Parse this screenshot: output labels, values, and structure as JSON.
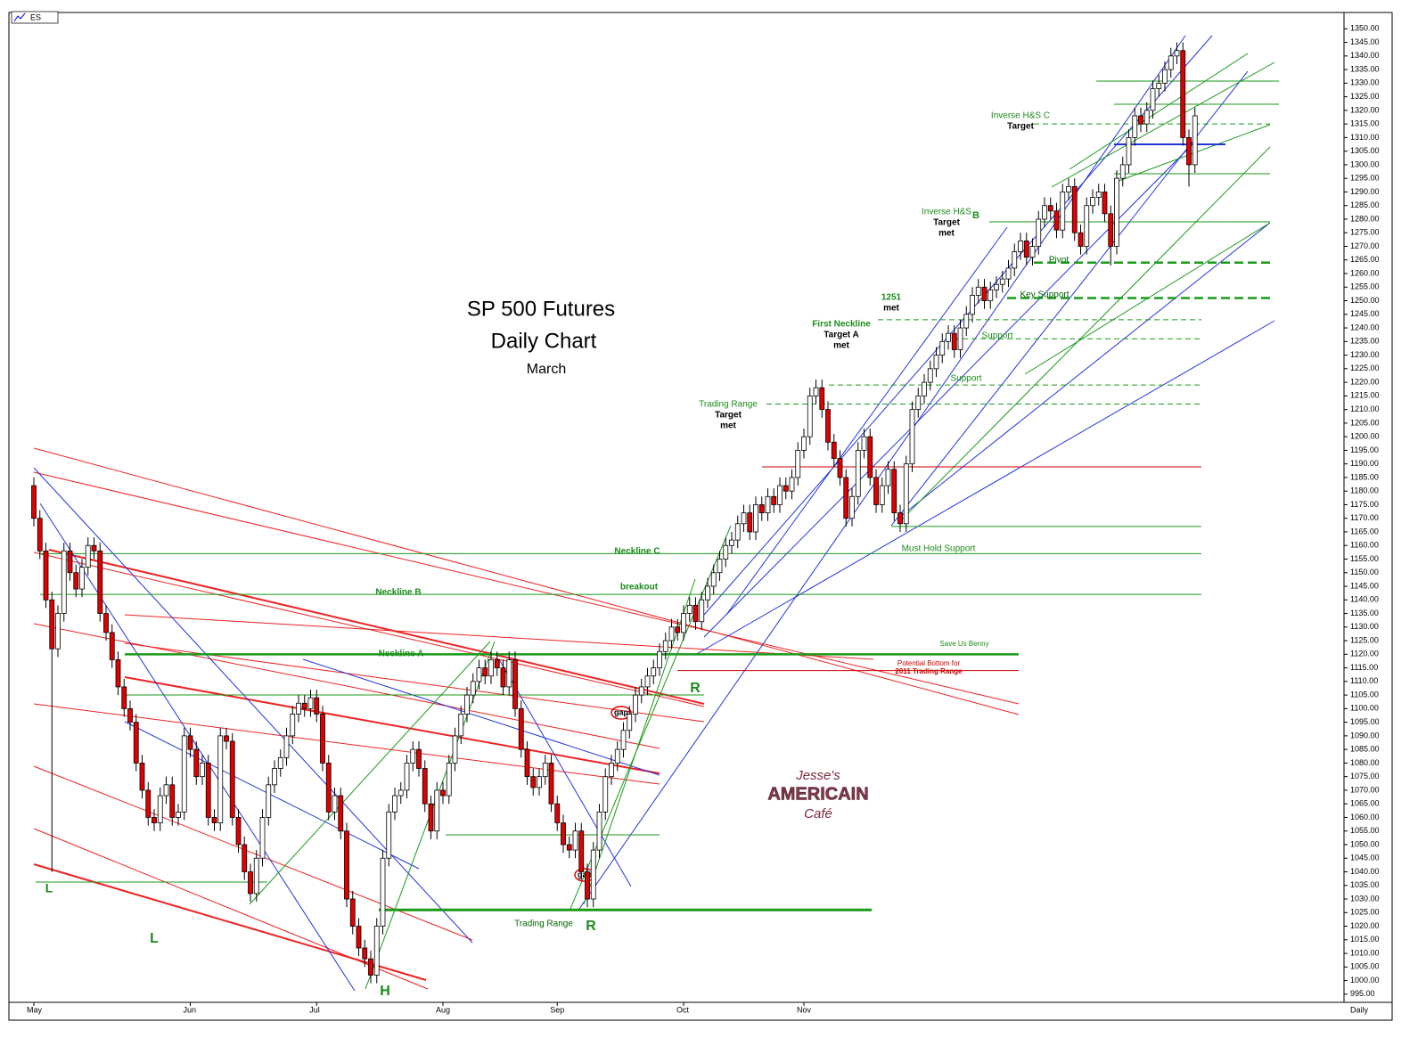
{
  "chart_data": {
    "type": "candlestick",
    "ticker": "ES",
    "title": "SP 500 Futures",
    "subtitle": "Daily Chart",
    "note": "March",
    "period_label": "Daily",
    "watermark": [
      "Jesse's",
      "AMERICAIN",
      "Café"
    ],
    "up_color": "#ffffff",
    "down_color": "#e00000",
    "categories": [
      "May",
      null,
      null,
      null,
      null,
      null,
      null,
      null,
      null,
      null,
      null,
      null,
      null,
      null,
      null,
      null,
      null,
      null,
      null,
      null,
      null,
      null,
      null,
      null,
      null,
      null,
      "Jun",
      null,
      null,
      null,
      null,
      null,
      null,
      null,
      null,
      null,
      null,
      null,
      null,
      null,
      null,
      null,
      null,
      null,
      null,
      null,
      null,
      "Jul",
      null,
      null,
      null,
      null,
      null,
      null,
      null,
      null,
      null,
      null,
      null,
      null,
      null,
      null,
      null,
      null,
      null,
      null,
      null,
      null,
      "Aug",
      null,
      null,
      null,
      null,
      null,
      null,
      null,
      null,
      null,
      null,
      null,
      null,
      null,
      null,
      null,
      null,
      null,
      null,
      "Sep",
      null,
      null,
      null,
      null,
      null,
      null,
      null,
      null,
      null,
      null,
      null,
      null,
      null,
      null,
      null,
      null,
      null,
      null,
      null,
      null,
      "Oct",
      null,
      null,
      null,
      null,
      null,
      null,
      null,
      null,
      null,
      null,
      null,
      null,
      null,
      null,
      null,
      null,
      null,
      null,
      null,
      "Nov",
      null,
      null,
      null,
      null,
      null,
      null,
      null,
      null,
      null,
      null,
      null,
      null,
      null,
      null,
      null,
      null,
      null,
      null,
      null,
      null,
      null,
      null,
      null,
      null,
      null,
      null,
      null,
      null,
      null,
      null,
      null,
      null,
      null,
      null,
      null,
      null,
      null,
      null,
      null,
      null,
      null,
      null,
      null,
      null,
      null,
      null,
      null,
      null,
      null,
      null,
      null,
      null,
      null,
      null,
      null,
      null,
      null,
      null,
      null,
      null,
      null,
      null,
      null,
      null,
      null
    ],
    "open": [
      1182,
      1170,
      1158,
      1140,
      1122,
      1135,
      1158,
      1150,
      1144,
      1152,
      1160,
      1158,
      1135,
      1128,
      1118,
      1108,
      1100,
      1095,
      1080,
      1070,
      1060,
      1058,
      1068,
      1072,
      1060,
      1062,
      1090,
      1085,
      1075,
      1080,
      1060,
      1058,
      1090,
      1088,
      1060,
      1050,
      1040,
      1032,
      1045,
      1060,
      1072,
      1078,
      1082,
      1090,
      1098,
      1102,
      1100,
      1104,
      1098,
      1080,
      1062,
      1068,
      1055,
      1030,
      1020,
      1012,
      1008,
      1002,
      1020,
      1045,
      1062,
      1068,
      1070,
      1080,
      1085,
      1078,
      1065,
      1055,
      1070,
      1068,
      1080,
      1090,
      1098,
      1105,
      1110,
      1115,
      1112,
      1118,
      1115,
      1108,
      1118,
      1100,
      1085,
      1075,
      1071,
      1075,
      1080,
      1065,
      1058,
      1050,
      1048,
      1055,
      1040,
      1030,
      1048,
      1062,
      1075,
      1080,
      1085,
      1092,
      1098,
      1105,
      1108,
      1112,
      1115,
      1121,
      1125,
      1130,
      1128,
      1135,
      1138,
      1132,
      1140,
      1145,
      1150,
      1155,
      1160,
      1162,
      1168,
      1172,
      1165,
      1175,
      1172,
      1178,
      1175,
      1182,
      1180,
      1185,
      1195,
      1200,
      1215,
      1218,
      1210,
      1198,
      1192,
      1185,
      1170,
      1178,
      1195,
      1200,
      1185,
      1175,
      1182,
      1188,
      1172,
      1168,
      1190,
      1210,
      1215,
      1220,
      1225,
      1230,
      1235,
      1238,
      1232,
      1240,
      1245,
      1252,
      1255,
      1250,
      1254,
      1256,
      1258,
      1262,
      1268,
      1272,
      1266,
      1270,
      1280,
      1285,
      1283,
      1276,
      1290,
      1292,
      1275,
      1270,
      1285,
      1288,
      1290,
      1282,
      1270,
      1295,
      1300,
      1310,
      1318,
      1315,
      1320,
      1328,
      1330,
      1335,
      1340,
      1342,
      1310,
      1300
    ],
    "high": [
      1185,
      1173,
      1161,
      1143,
      1138,
      1161,
      1161,
      1153,
      1155,
      1163,
      1163,
      1161,
      1138,
      1131,
      1121,
      1111,
      1103,
      1098,
      1083,
      1073,
      1063,
      1071,
      1075,
      1075,
      1065,
      1093,
      1093,
      1088,
      1083,
      1083,
      1063,
      1093,
      1093,
      1091,
      1063,
      1053,
      1043,
      1048,
      1063,
      1075,
      1081,
      1085,
      1093,
      1101,
      1105,
      1105,
      1107,
      1107,
      1101,
      1083,
      1071,
      1071,
      1058,
      1033,
      1023,
      1015,
      1011,
      1023,
      1048,
      1065,
      1071,
      1073,
      1083,
      1088,
      1088,
      1081,
      1068,
      1073,
      1073,
      1083,
      1093,
      1101,
      1108,
      1113,
      1118,
      1118,
      1121,
      1121,
      1118,
      1121,
      1121,
      1103,
      1088,
      1078,
      1078,
      1083,
      1083,
      1068,
      1061,
      1053,
      1058,
      1058,
      1043,
      1051,
      1065,
      1078,
      1083,
      1088,
      1095,
      1101,
      1108,
      1111,
      1115,
      1118,
      1124,
      1128,
      1133,
      1133,
      1138,
      1141,
      1141,
      1143,
      1148,
      1153,
      1158,
      1163,
      1165,
      1171,
      1175,
      1175,
      1178,
      1178,
      1181,
      1181,
      1185,
      1185,
      1188,
      1198,
      1203,
      1218,
      1221,
      1221,
      1213,
      1201,
      1195,
      1188,
      1181,
      1198,
      1203,
      1203,
      1188,
      1185,
      1191,
      1191,
      1175,
      1193,
      1213,
      1218,
      1223,
      1228,
      1233,
      1238,
      1241,
      1241,
      1243,
      1248,
      1255,
      1258,
      1258,
      1257,
      1259,
      1261,
      1265,
      1271,
      1275,
      1275,
      1273,
      1283,
      1288,
      1288,
      1286,
      1293,
      1295,
      1295,
      1278,
      1288,
      1291,
      1293,
      1293,
      1285,
      1298,
      1303,
      1313,
      1321,
      1321,
      1323,
      1331,
      1333,
      1338,
      1343,
      1345,
      1345,
      1313,
      1321
    ],
    "low": [
      1167,
      1155,
      1137,
      1040,
      1119,
      1132,
      1147,
      1141,
      1141,
      1149,
      1155,
      1132,
      1125,
      1115,
      1105,
      1097,
      1092,
      1077,
      1067,
      1057,
      1055,
      1055,
      1065,
      1057,
      1057,
      1059,
      1082,
      1072,
      1072,
      1057,
      1055,
      1055,
      1085,
      1057,
      1047,
      1037,
      1029,
      1029,
      1042,
      1057,
      1069,
      1075,
      1079,
      1087,
      1095,
      1097,
      1097,
      1095,
      1077,
      1059,
      1059,
      1052,
      1027,
      1017,
      1009,
      1005,
      999,
      999,
      1017,
      1042,
      1059,
      1065,
      1067,
      1077,
      1075,
      1062,
      1052,
      1052,
      1065,
      1065,
      1077,
      1087,
      1095,
      1102,
      1107,
      1109,
      1109,
      1112,
      1105,
      1105,
      1097,
      1082,
      1072,
      1068,
      1068,
      1072,
      1062,
      1055,
      1047,
      1045,
      1045,
      1037,
      1027,
      1027,
      1045,
      1059,
      1072,
      1077,
      1082,
      1089,
      1095,
      1102,
      1105,
      1109,
      1112,
      1118,
      1122,
      1125,
      1125,
      1132,
      1129,
      1129,
      1137,
      1142,
      1147,
      1152,
      1157,
      1159,
      1165,
      1162,
      1162,
      1169,
      1169,
      1172,
      1172,
      1177,
      1177,
      1182,
      1192,
      1197,
      1212,
      1207,
      1195,
      1189,
      1182,
      1167,
      1167,
      1175,
      1192,
      1182,
      1172,
      1172,
      1179,
      1169,
      1165,
      1165,
      1187,
      1207,
      1212,
      1217,
      1222,
      1227,
      1232,
      1229,
      1229,
      1237,
      1242,
      1249,
      1247,
      1247,
      1251,
      1253,
      1255,
      1259,
      1265,
      1263,
      1263,
      1267,
      1277,
      1280,
      1273,
      1273,
      1287,
      1272,
      1267,
      1267,
      1282,
      1285,
      1279,
      1263,
      1267,
      1292,
      1297,
      1307,
      1312,
      1312,
      1317,
      1325,
      1327,
      1332,
      1337,
      1307,
      1292,
      1297
    ],
    "close": [
      1170,
      1158,
      1140,
      1122,
      1135,
      1158,
      1150,
      1144,
      1152,
      1160,
      1158,
      1135,
      1128,
      1118,
      1108,
      1100,
      1095,
      1080,
      1070,
      1060,
      1058,
      1068,
      1072,
      1060,
      1062,
      1090,
      1085,
      1075,
      1080,
      1060,
      1058,
      1090,
      1088,
      1060,
      1050,
      1040,
      1032,
      1045,
      1060,
      1072,
      1078,
      1082,
      1090,
      1098,
      1102,
      1100,
      1104,
      1098,
      1080,
      1062,
      1068,
      1055,
      1030,
      1020,
      1012,
      1008,
      1002,
      1020,
      1045,
      1062,
      1068,
      1070,
      1080,
      1085,
      1078,
      1065,
      1055,
      1070,
      1068,
      1080,
      1090,
      1098,
      1105,
      1110,
      1115,
      1112,
      1118,
      1115,
      1108,
      1118,
      1100,
      1085,
      1075,
      1071,
      1075,
      1080,
      1065,
      1058,
      1050,
      1048,
      1055,
      1040,
      1030,
      1048,
      1062,
      1075,
      1080,
      1085,
      1092,
      1098,
      1105,
      1108,
      1112,
      1115,
      1121,
      1125,
      1130,
      1128,
      1135,
      1138,
      1132,
      1140,
      1145,
      1150,
      1155,
      1160,
      1162,
      1168,
      1172,
      1165,
      1175,
      1172,
      1178,
      1175,
      1182,
      1180,
      1185,
      1195,
      1200,
      1215,
      1218,
      1210,
      1198,
      1192,
      1185,
      1170,
      1178,
      1195,
      1200,
      1185,
      1175,
      1182,
      1188,
      1172,
      1168,
      1190,
      1210,
      1215,
      1220,
      1225,
      1230,
      1235,
      1238,
      1232,
      1240,
      1245,
      1252,
      1255,
      1250,
      1254,
      1256,
      1258,
      1262,
      1268,
      1272,
      1266,
      1270,
      1280,
      1285,
      1283,
      1276,
      1290,
      1292,
      1275,
      1270,
      1285,
      1288,
      1290,
      1282,
      1270,
      1295,
      1300,
      1310,
      1318,
      1315,
      1320,
      1328,
      1330,
      1335,
      1340,
      1342,
      1310,
      1300,
      1318
    ],
    "ylim": [
      992,
      1356
    ],
    "yticks": [
      {
        "value": 995,
        "label": "995.00"
      },
      {
        "value": 1000,
        "label": "1000.00"
      },
      {
        "value": 1005,
        "label": "1005.00"
      },
      {
        "value": 1010,
        "label": "1010.00"
      },
      {
        "value": 1015,
        "label": "1015.00"
      },
      {
        "value": 1020,
        "label": "1020.00"
      },
      {
        "value": 1025,
        "label": "1025.00"
      },
      {
        "value": 1030,
        "label": "1030.00"
      },
      {
        "value": 1035,
        "label": "1035.00"
      },
      {
        "value": 1040,
        "label": "1040.00"
      },
      {
        "value": 1045,
        "label": "1045.00"
      },
      {
        "value": 1050,
        "label": "1050.00"
      },
      {
        "value": 1055,
        "label": "1055.00"
      },
      {
        "value": 1060,
        "label": "1060.00"
      },
      {
        "value": 1065,
        "label": "1065.00"
      },
      {
        "value": 1070,
        "label": "1070.00"
      },
      {
        "value": 1075,
        "label": "1075.00"
      },
      {
        "value": 1080,
        "label": "1080.00"
      },
      {
        "value": 1085,
        "label": "1085.00"
      },
      {
        "value": 1090,
        "label": "1090.00"
      },
      {
        "value": 1095,
        "label": "1095.00"
      },
      {
        "value": 1100,
        "label": "1100.00"
      },
      {
        "value": 1105,
        "label": "1105.00"
      },
      {
        "value": 1110,
        "label": "1110.00"
      },
      {
        "value": 1115,
        "label": "1115.00"
      },
      {
        "value": 1120,
        "label": "1120.00"
      },
      {
        "value": 1125,
        "label": "1125.00"
      },
      {
        "value": 1130,
        "label": "1130.00"
      },
      {
        "value": 1135,
        "label": "1135.00"
      },
      {
        "value": 1140,
        "label": "1140.00"
      },
      {
        "value": 1145,
        "label": "1145.00"
      },
      {
        "value": 1150,
        "label": "1150.00"
      },
      {
        "value": 1155,
        "label": "1155.00"
      },
      {
        "value": 1160,
        "label": "1160.00"
      },
      {
        "value": 1165,
        "label": "1165.00"
      },
      {
        "value": 1170,
        "label": "1170.00"
      },
      {
        "value": 1175,
        "label": "1175.00"
      },
      {
        "value": 1180,
        "label": "1180.00"
      },
      {
        "value": 1185,
        "label": "1185.00"
      },
      {
        "value": 1190,
        "label": "1190.00"
      },
      {
        "value": 1195,
        "label": "1195.00"
      },
      {
        "value": 1200,
        "label": "1200.00"
      },
      {
        "value": 1205,
        "label": "1205.00"
      },
      {
        "value": 1210,
        "label": "1210.00"
      },
      {
        "value": 1215,
        "label": "1215.00"
      },
      {
        "value": 1220,
        "label": "1220.00"
      },
      {
        "value": 1225,
        "label": "1225.00"
      },
      {
        "value": 1230,
        "label": "1230.00"
      },
      {
        "value": 1235,
        "label": "1235.00"
      },
      {
        "value": 1240,
        "label": "1240.00"
      },
      {
        "value": 1245,
        "label": "1245.00"
      },
      {
        "value": 1250,
        "label": "1250.00"
      },
      {
        "value": 1255,
        "label": "1255.00"
      },
      {
        "value": 1260,
        "label": "1260.00"
      },
      {
        "value": 1265,
        "label": "1265.00"
      },
      {
        "value": 1270,
        "label": "1270.00"
      },
      {
        "value": 1275,
        "label": "1275.00"
      },
      {
        "value": 1280,
        "label": "1280.00"
      },
      {
        "value": 1285,
        "label": "1285.00"
      },
      {
        "value": 1290,
        "label": "1290.00"
      },
      {
        "value": 1295,
        "label": "1295.00"
      },
      {
        "value": 1300,
        "label": "1300.00"
      },
      {
        "value": 1305,
        "label": "1305.00"
      },
      {
        "value": 1310,
        "label": "1310.00"
      },
      {
        "value": 1315,
        "label": "1315.00"
      },
      {
        "value": 1320,
        "label": "1320.00"
      },
      {
        "value": 1325,
        "label": "1325.00"
      },
      {
        "value": 1330,
        "label": "1330.00"
      },
      {
        "value": 1335,
        "label": "1335.00"
      },
      {
        "value": 1340,
        "label": "1340.00"
      },
      {
        "value": 1345,
        "label": "1345.00"
      },
      {
        "value": 1350,
        "label": "1350.00"
      }
    ],
    "annotations": [
      {
        "lines": [
          "Neckline  C"
        ],
        "level": 1157,
        "color": "#1a8c1a"
      },
      {
        "lines": [
          "Neckline  B"
        ],
        "level": 1142,
        "color": "#1a8c1a"
      },
      {
        "lines": [
          "Neckline  A"
        ],
        "level": 1120,
        "color": "#1a8c1a"
      },
      {
        "lines": [
          "breakout"
        ],
        "color": "#1a8c1a"
      },
      {
        "lines": [
          "Save Us Benny"
        ],
        "color": "#1a8c1a"
      },
      {
        "lines": [
          "Potential Bottom for",
          "2011 Trading Range"
        ],
        "level": 1114,
        "color": "#cc0000"
      },
      {
        "lines": [
          "Must Hold Support"
        ],
        "level": 1167,
        "color": "#1a8c1a"
      },
      {
        "lines": [
          "Trading Range",
          "Target",
          "met"
        ],
        "level": 1212,
        "color": "#1a8c1a"
      },
      {
        "lines": [
          "Support"
        ],
        "level": 1219,
        "color": "#1a8c1a"
      },
      {
        "lines": [
          "First Neckline",
          "Target  A",
          "met"
        ],
        "level": 1243,
        "color": "#1a8c1a"
      },
      {
        "lines": [
          "Support"
        ],
        "level": 1236,
        "color": "#1a8c1a"
      },
      {
        "lines": [
          "1251",
          "met"
        ],
        "color": "#1a8c1a"
      },
      {
        "lines": [
          "Key Support"
        ],
        "level": 1251,
        "color": "#006400"
      },
      {
        "lines": [
          "Pivot"
        ],
        "level": 1264,
        "color": "#006400"
      },
      {
        "lines": [
          "Inverse H&S",
          "Target",
          "met"
        ],
        "level": 1279,
        "color": "#1a8c1a"
      },
      {
        "lines": [
          "Inverse H&S  C",
          "Target"
        ],
        "level": 1315,
        "color": "#1a8c1a"
      },
      {
        "lines": [
          "Trading Range"
        ],
        "level": 1026,
        "color": "#006400"
      }
    ],
    "markers": [
      "L",
      "L",
      "H",
      "R",
      "R",
      "B",
      "gap",
      "gap"
    ]
  }
}
